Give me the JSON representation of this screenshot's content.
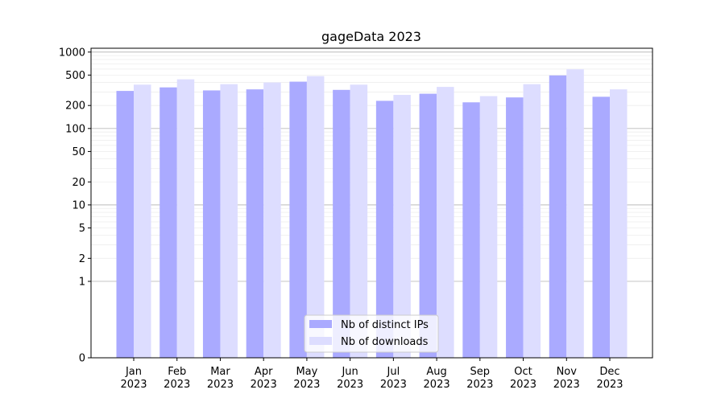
{
  "chart_data": {
    "type": "bar",
    "title": "gageData 2023",
    "xlabel": "",
    "ylabel": "",
    "yscale": "symlog",
    "ylim": [
      0,
      1000
    ],
    "yticks": [
      0,
      1,
      2,
      5,
      10,
      20,
      50,
      100,
      200,
      500,
      1000
    ],
    "ytick_labels": [
      "0",
      "1",
      "2",
      "5",
      "10",
      "20",
      "50",
      "100",
      "200",
      "500",
      "1000"
    ],
    "grid": "horizontal",
    "legend_position": "bottom-center",
    "categories": [
      "Jan",
      "Feb",
      "Mar",
      "Apr",
      "May",
      "Jun",
      "Jul",
      "Aug",
      "Sep",
      "Oct",
      "Nov",
      "Dec"
    ],
    "category_sublabel": "2023",
    "series": [
      {
        "name": "Nb of distinct IPs",
        "color": "#aaaaff",
        "values": [
          310,
          345,
          315,
          325,
          410,
          320,
          230,
          285,
          220,
          255,
          495,
          260
        ]
      },
      {
        "name": "Nb of downloads",
        "color": "#ddddff",
        "values": [
          375,
          440,
          380,
          400,
          485,
          375,
          275,
          350,
          265,
          380,
          595,
          325
        ]
      }
    ]
  }
}
